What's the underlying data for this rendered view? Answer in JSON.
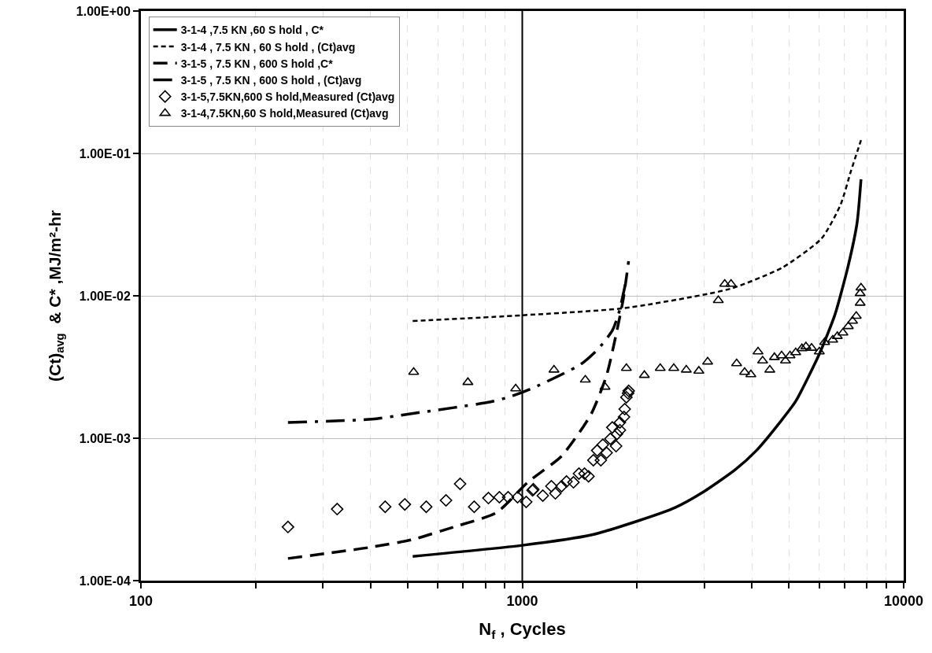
{
  "chart_data": {
    "type": "line",
    "xlabel": "N$_{f}$ , Cycles",
    "ylabel": "(Ct)$_{avg}$  & C* ,MJ/m²-hr",
    "log": "xy",
    "grid": true,
    "legend": "top left",
    "xlim": [
      100,
      10000
    ],
    "ylim": [
      0.0001,
      1
    ],
    "xticks": [
      100,
      {
        "value": 200,
        "label": null
      },
      {
        "value": 300,
        "label": null
      },
      {
        "value": 400,
        "label": null
      },
      {
        "value": 500,
        "label": null
      },
      {
        "value": 600,
        "label": null
      },
      {
        "value": 700,
        "label": null
      },
      {
        "value": 800,
        "label": null
      },
      {
        "value": 900,
        "label": null
      },
      1000,
      {
        "value": 2000,
        "label": null
      },
      {
        "value": 3000,
        "label": null
      },
      {
        "value": 4000,
        "label": null
      },
      {
        "value": 5000,
        "label": null
      },
      {
        "value": 6000,
        "label": null
      },
      {
        "value": 7000,
        "label": null
      },
      {
        "value": 8000,
        "label": null
      },
      {
        "value": 9000,
        "label": null
      },
      10000
    ],
    "yticks": [
      {
        "value": 0.0001,
        "label": "1.00E-04"
      },
      {
        "value": 0.001,
        "label": "1.00E-03"
      },
      {
        "value": 0.01,
        "label": "1.00E-02"
      },
      {
        "value": 0.1,
        "label": "1.00E-01"
      },
      {
        "value": 1,
        "label": "1.00E+00"
      }
    ],
    "ref_lines": [
      {
        "axis": "x",
        "value": 1000,
        "color": "#000000",
        "line_style": "solid"
      }
    ],
    "series": [
      {
        "name": "3-1-4 ,7.5 KN ,60 S hold , C*",
        "line_style": "solid",
        "color": "#000000",
        "x": [
          516,
          1000,
          1514,
          2013,
          2518,
          2944,
          3614,
          4111,
          4808,
          5212,
          6010,
          6607,
          7160,
          7550,
          7730
        ],
        "values": [
          0.000148,
          0.000177,
          0.000209,
          0.000263,
          0.000326,
          0.00041,
          0.0006,
          0.00082,
          0.00136,
          0.00182,
          0.0039,
          0.0074,
          0.0164,
          0.0327,
          0.0658
        ]
      },
      {
        "name": "3-1-4 , 7.5 KN , 60 S hold , (Ct)avg",
        "line_style": "dotted",
        "color": "#000000",
        "x": [
          516,
          1000,
          1856,
          3508,
          4808,
          6095,
          6833,
          7278,
          7730
        ],
        "values": [
          0.00665,
          0.0073,
          0.0082,
          0.0112,
          0.0158,
          0.0253,
          0.0437,
          0.0755,
          0.124
        ]
      },
      {
        "name": "3-1-5 , 7.5 KN , 600 S hold ,C*",
        "line_style": "dashed",
        "color": "#000000",
        "x": [
          243,
          397,
          514,
          661,
          855,
          1033,
          1268,
          1514,
          1664,
          1771,
          1840,
          1900
        ],
        "values": [
          0.000143,
          0.000171,
          0.000194,
          0.000238,
          0.0003,
          0.00049,
          0.00075,
          0.00147,
          0.00277,
          0.0057,
          0.0095,
          0.0175
        ]
      },
      {
        "name": "3-1-5 , 7.5 KN , 600 S hold , (Ct)avg",
        "line_style": "dashdot",
        "color": "#000000",
        "x": [
          243,
          404,
          497,
          661,
          826,
          931,
          1069,
          1422,
          1586,
          1722,
          1787,
          1880
        ],
        "values": [
          0.00129,
          0.00136,
          0.00147,
          0.00164,
          0.0018,
          0.00196,
          0.00226,
          0.0033,
          0.00427,
          0.0057,
          0.0074,
          0.0135
        ]
      },
      {
        "name": "3-1-5,7.5KN,600 S hold,Measured (Ct)avg",
        "type": "scatter",
        "marker": "diamond",
        "color": "#000000",
        "x": [
          243,
          327,
          437,
          492,
          560,
          631,
          687,
          748,
          815,
          871,
          918,
          972,
          1024,
          1064,
          1069,
          1132,
          1192,
          1221,
          1268,
          1306,
          1362,
          1408,
          1456,
          1492,
          1536,
          1572,
          1607,
          1626,
          1664,
          1702,
          1722,
          1762,
          1771,
          1803,
          1803,
          1848,
          1856,
          1875,
          1894,
          1901
        ],
        "values": [
          0.000238,
          0.000318,
          0.00033,
          0.000343,
          0.00033,
          0.000366,
          0.000478,
          0.00033,
          0.00038,
          0.000385,
          0.000385,
          0.000385,
          0.000357,
          0.00043,
          0.000438,
          0.000395,
          0.00046,
          0.00041,
          0.00046,
          0.000497,
          0.00049,
          0.000564,
          0.000564,
          0.00054,
          0.0007,
          0.00082,
          0.0007,
          0.0009,
          0.00079,
          0.00099,
          0.00119,
          0.00088,
          0.00107,
          0.00114,
          0.00129,
          0.00141,
          0.0016,
          0.00194,
          0.00207,
          0.00215
        ]
      },
      {
        "name": "3-1-4,7.5KN,60 S hold,Measured (Ct)avg",
        "type": "scatter",
        "marker": "triangle",
        "color": "#000000",
        "x": [
          519,
          720,
          961,
          1211,
          1463,
          1648,
          1875,
          2090,
          2300,
          2496,
          2692,
          2904,
          3062,
          3266,
          3395,
          3527,
          3648,
          3828,
          3975,
          4151,
          4268,
          4457,
          4583,
          4786,
          4900,
          5035,
          5212,
          5410,
          5542,
          5735,
          6010,
          6207,
          6516,
          6700,
          6930,
          7160,
          7345,
          7510,
          7690,
          7690,
          7730
        ],
        "values": [
          0.00291,
          0.00247,
          0.00223,
          0.00302,
          0.00257,
          0.00229,
          0.0031,
          0.00277,
          0.0031,
          0.0031,
          0.00302,
          0.00297,
          0.00344,
          0.0093,
          0.0121,
          0.0121,
          0.00335,
          0.00291,
          0.0028,
          0.00405,
          0.0035,
          0.00302,
          0.0037,
          0.0038,
          0.0035,
          0.0038,
          0.004,
          0.00427,
          0.0044,
          0.0043,
          0.00405,
          0.00472,
          0.0049,
          0.0052,
          0.0055,
          0.0061,
          0.00665,
          0.0072,
          0.0089,
          0.0104,
          0.0114
        ]
      }
    ]
  }
}
